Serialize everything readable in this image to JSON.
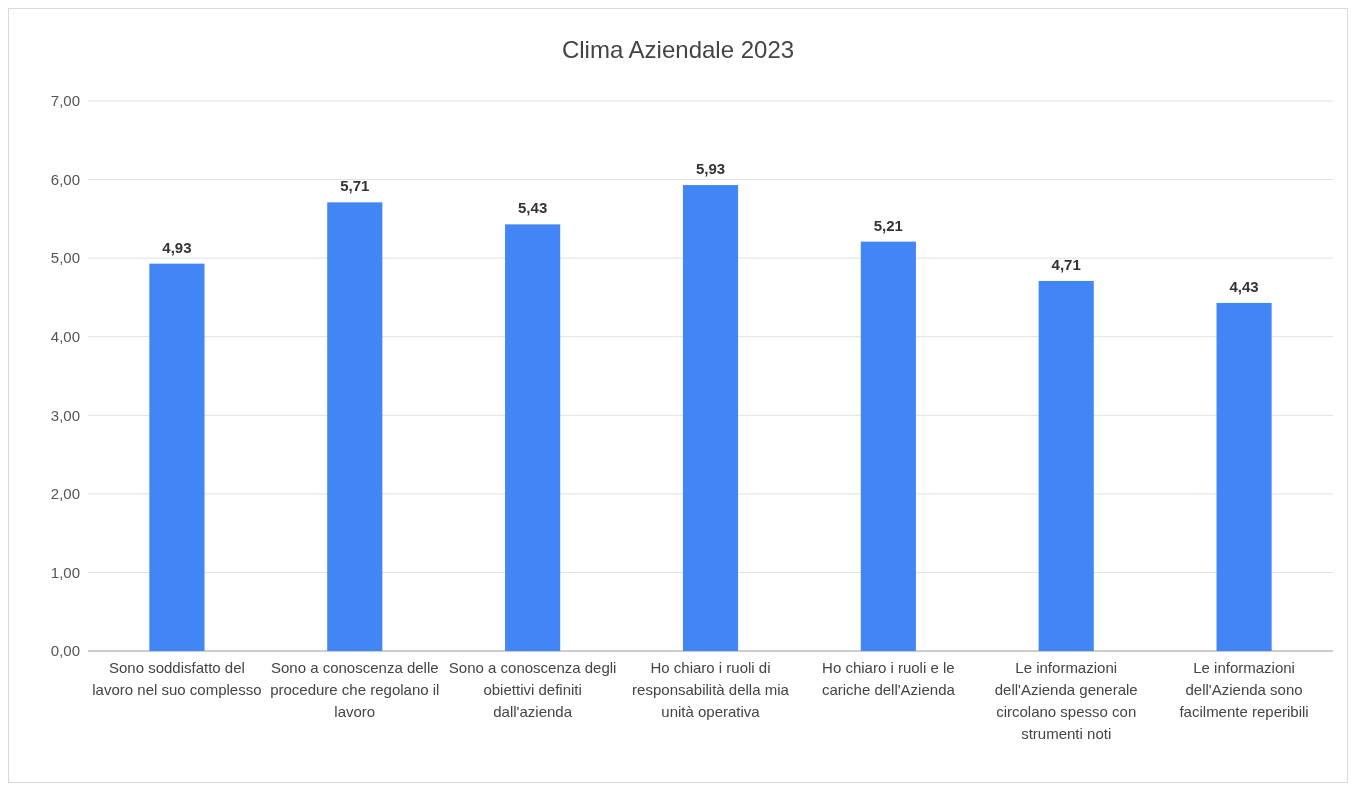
{
  "chart_data": {
    "type": "bar",
    "title": "Clima Aziendale 2023",
    "categories": [
      "Sono soddisfatto del lavoro nel suo complesso",
      "Sono a conoscenza delle procedure che regolano il lavoro",
      "Sono a conoscenza degli obiettivi definiti dall'azienda",
      "Ho chiaro i ruoli di responsabilità della mia unità operativa",
      "Ho chiaro i ruoli e le cariche dell'Azienda",
      "Le informazioni dell'Azienda generale circolano spesso con strumenti noti",
      "Le informazioni dell'Azienda sono facilmente reperibili"
    ],
    "values": [
      4.93,
      5.71,
      5.43,
      5.93,
      5.21,
      4.71,
      4.43
    ],
    "value_labels": [
      "4,93",
      "5,71",
      "5,43",
      "5,93",
      "5,21",
      "4,71",
      "4,43"
    ],
    "color": "#4285f4",
    "ylim": [
      0,
      7
    ],
    "yticks": [
      {
        "value": 0,
        "label": "0,00"
      },
      {
        "value": 1,
        "label": "1,00"
      },
      {
        "value": 2,
        "label": "2,00"
      },
      {
        "value": 3,
        "label": "3,00"
      },
      {
        "value": 4,
        "label": "4,00"
      },
      {
        "value": 5,
        "label": "5,00"
      },
      {
        "value": 6,
        "label": "6,00"
      },
      {
        "value": 7,
        "label": "7,00"
      }
    ],
    "grid": "y"
  }
}
